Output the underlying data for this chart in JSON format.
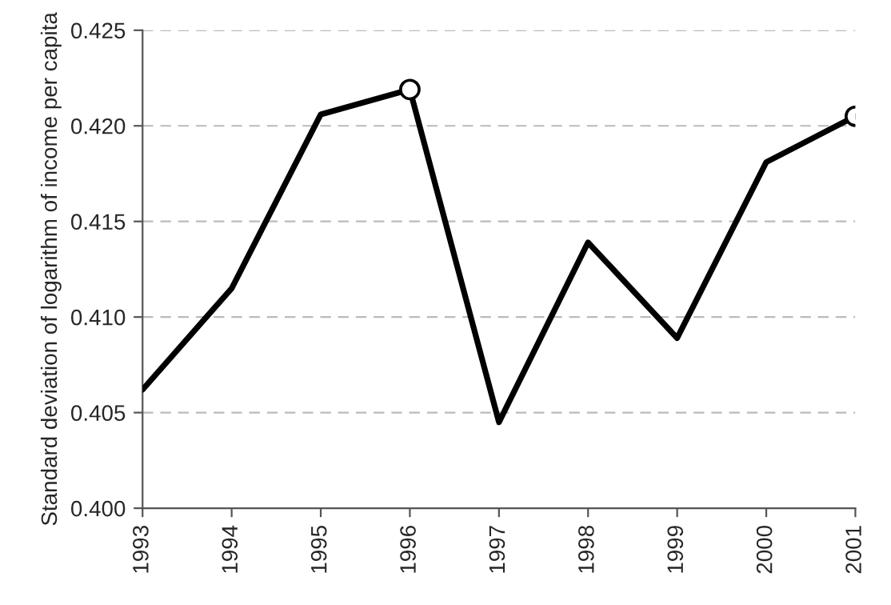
{
  "chart_data": {
    "type": "line",
    "ylabel": "Standard deviation of logarithm of income per capita",
    "categories": [
      "1993",
      "1994",
      "1995",
      "1996",
      "1997",
      "1998",
      "1999",
      "2000",
      "2001"
    ],
    "series": [
      {
        "color": "#000000",
        "marker": "none",
        "line_style": "solid",
        "values": [
          0.4062,
          0.4115,
          0.4206,
          0.4219,
          0.4045,
          0.4139,
          0.4089,
          0.4181,
          0.4205
        ]
      },
      {
        "type": "scatter",
        "color": "#000000",
        "marker": "circle",
        "values": [
          null,
          null,
          null,
          0.4219,
          null,
          null,
          null,
          null,
          0.4205
        ]
      }
    ],
    "ylim": [
      0.4,
      0.425
    ],
    "yticks": [
      {
        "value": 0.4,
        "label": "0.400"
      },
      {
        "value": 0.405,
        "label": "0.405"
      },
      {
        "value": 0.41,
        "label": "0.410"
      },
      {
        "value": 0.415,
        "label": "0.415"
      },
      {
        "value": 0.42,
        "label": "0.420"
      },
      {
        "value": 0.425,
        "label": "0.425"
      }
    ],
    "grid": "y",
    "legend": false
  }
}
